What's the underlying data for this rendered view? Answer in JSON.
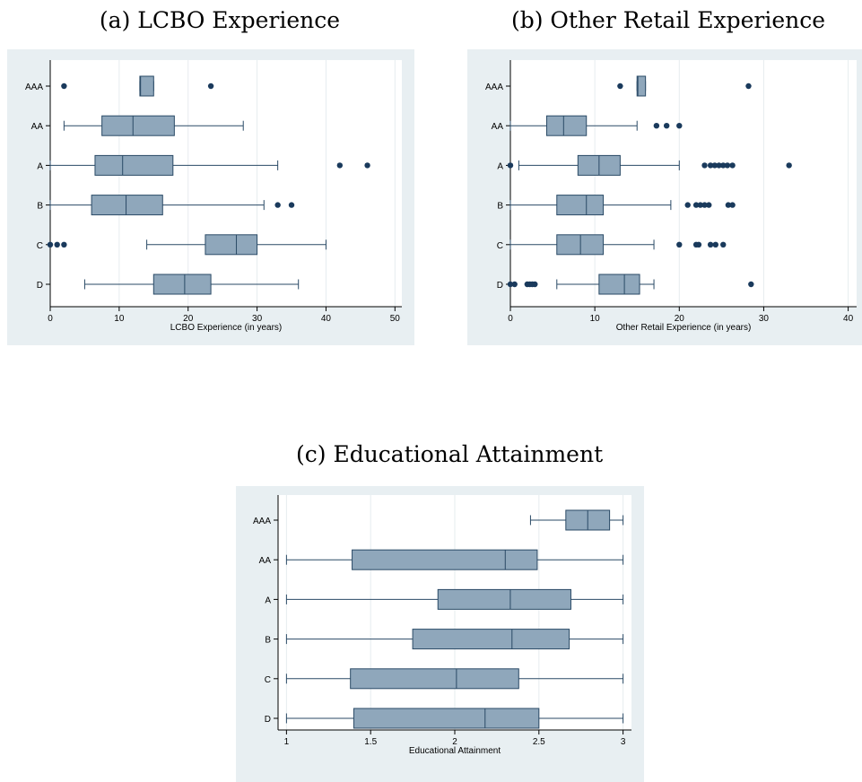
{
  "captions": {
    "a": "(a) LCBO Experience",
    "b": "(b) Other Retail Experience",
    "c": "(c) Educational Attainment"
  },
  "colors": {
    "panel_background": "#e8eff2",
    "plot_background": "#ffffff",
    "box_fill": "#8fa7bb",
    "box_stroke": "#2a4a66",
    "whisker": "#2a4a66",
    "outlier": "#1a3a5c",
    "grid": "#e6ecef"
  },
  "chart_data": [
    {
      "type": "boxplot",
      "orientation": "horizontal",
      "xlabel": "LCBO Experience (in years)",
      "xlim": [
        0,
        51
      ],
      "xticks": [
        0,
        10,
        20,
        30,
        40,
        50
      ],
      "grid": true,
      "categories": [
        "AAA",
        "AA",
        "A",
        "B",
        "C",
        "D"
      ],
      "boxes": [
        {
          "category": "AAA",
          "whislo": 13,
          "q1": 13,
          "med": 13.1,
          "q3": 15,
          "whishi": 15,
          "fliers": [
            2,
            23.3
          ]
        },
        {
          "category": "AA",
          "whislo": 2,
          "q1": 7.5,
          "med": 12,
          "q3": 18,
          "whishi": 28,
          "fliers": []
        },
        {
          "category": "A",
          "whislo": 0,
          "q1": 6.5,
          "med": 10.5,
          "q3": 17.8,
          "whishi": 33,
          "fliers": [
            42,
            46
          ]
        },
        {
          "category": "B",
          "whislo": 0,
          "q1": 6,
          "med": 11,
          "q3": 16.3,
          "whishi": 31,
          "fliers": [
            33,
            35
          ]
        },
        {
          "category": "C",
          "whislo": 14,
          "q1": 22.5,
          "med": 27,
          "q3": 30,
          "whishi": 40,
          "fliers": [
            0,
            1,
            2
          ]
        },
        {
          "category": "D",
          "whislo": 5,
          "q1": 15,
          "med": 19.5,
          "q3": 23.3,
          "whishi": 36,
          "fliers": []
        }
      ]
    },
    {
      "type": "boxplot",
      "orientation": "horizontal",
      "xlabel": "Other Retail Experience (in years)",
      "xlim": [
        0,
        41
      ],
      "xticks": [
        0,
        10,
        20,
        30,
        40
      ],
      "grid": true,
      "categories": [
        "AAA",
        "AA",
        "A",
        "B",
        "C",
        "D"
      ],
      "boxes": [
        {
          "category": "AAA",
          "whislo": 15,
          "q1": 15,
          "med": 15.1,
          "q3": 16,
          "whishi": 16,
          "fliers": [
            13,
            28.2
          ]
        },
        {
          "category": "AA",
          "whislo": 0,
          "q1": 4.3,
          "med": 6.3,
          "q3": 9,
          "whishi": 15,
          "fliers": [
            17.3,
            18.5,
            20
          ]
        },
        {
          "category": "A",
          "whislo": 1,
          "q1": 8,
          "med": 10.5,
          "q3": 13,
          "whishi": 20,
          "fliers": [
            0,
            23,
            23.7,
            24.2,
            24.7,
            25.2,
            25.7,
            26.3,
            33
          ]
        },
        {
          "category": "B",
          "whislo": 0,
          "q1": 5.5,
          "med": 9,
          "q3": 11,
          "whishi": 19,
          "fliers": [
            21,
            22,
            22.5,
            23,
            23.5,
            25.8,
            26.3
          ]
        },
        {
          "category": "C",
          "whislo": 0,
          "q1": 5.5,
          "med": 8.3,
          "q3": 11,
          "whishi": 17,
          "fliers": [
            20,
            22,
            22.3,
            23.7,
            24.3,
            25.2
          ]
        },
        {
          "category": "D",
          "whislo": 5.5,
          "q1": 10.5,
          "med": 13.5,
          "q3": 15.3,
          "whishi": 17,
          "fliers": [
            0,
            0.5,
            2,
            2.3,
            2.6,
            2.9,
            28.5
          ]
        }
      ]
    },
    {
      "type": "boxplot",
      "orientation": "horizontal",
      "xlabel": "Educational Attainment",
      "xlim": [
        0.95,
        3.05
      ],
      "xticks": [
        1,
        1.5,
        2,
        2.5,
        3
      ],
      "xticklabels": [
        "1",
        "1.5",
        "2",
        "2.5",
        "3"
      ],
      "grid": true,
      "categories": [
        "AAA",
        "AA",
        "A",
        "B",
        "C",
        "D"
      ],
      "boxes": [
        {
          "category": "AAA",
          "whislo": 2.45,
          "q1": 2.66,
          "med": 2.79,
          "q3": 2.92,
          "whishi": 3,
          "fliers": []
        },
        {
          "category": "AA",
          "whislo": 1,
          "q1": 1.39,
          "med": 2.3,
          "q3": 2.49,
          "whishi": 3,
          "fliers": []
        },
        {
          "category": "A",
          "whislo": 1,
          "q1": 1.9,
          "med": 2.33,
          "q3": 2.69,
          "whishi": 3,
          "fliers": []
        },
        {
          "category": "B",
          "whislo": 1,
          "q1": 1.75,
          "med": 2.34,
          "q3": 2.68,
          "whishi": 3,
          "fliers": []
        },
        {
          "category": "C",
          "whislo": 1,
          "q1": 1.38,
          "med": 2.01,
          "q3": 2.38,
          "whishi": 3,
          "fliers": []
        },
        {
          "category": "D",
          "whislo": 1,
          "q1": 1.4,
          "med": 2.18,
          "q3": 2.5,
          "whishi": 3,
          "fliers": []
        }
      ]
    }
  ]
}
